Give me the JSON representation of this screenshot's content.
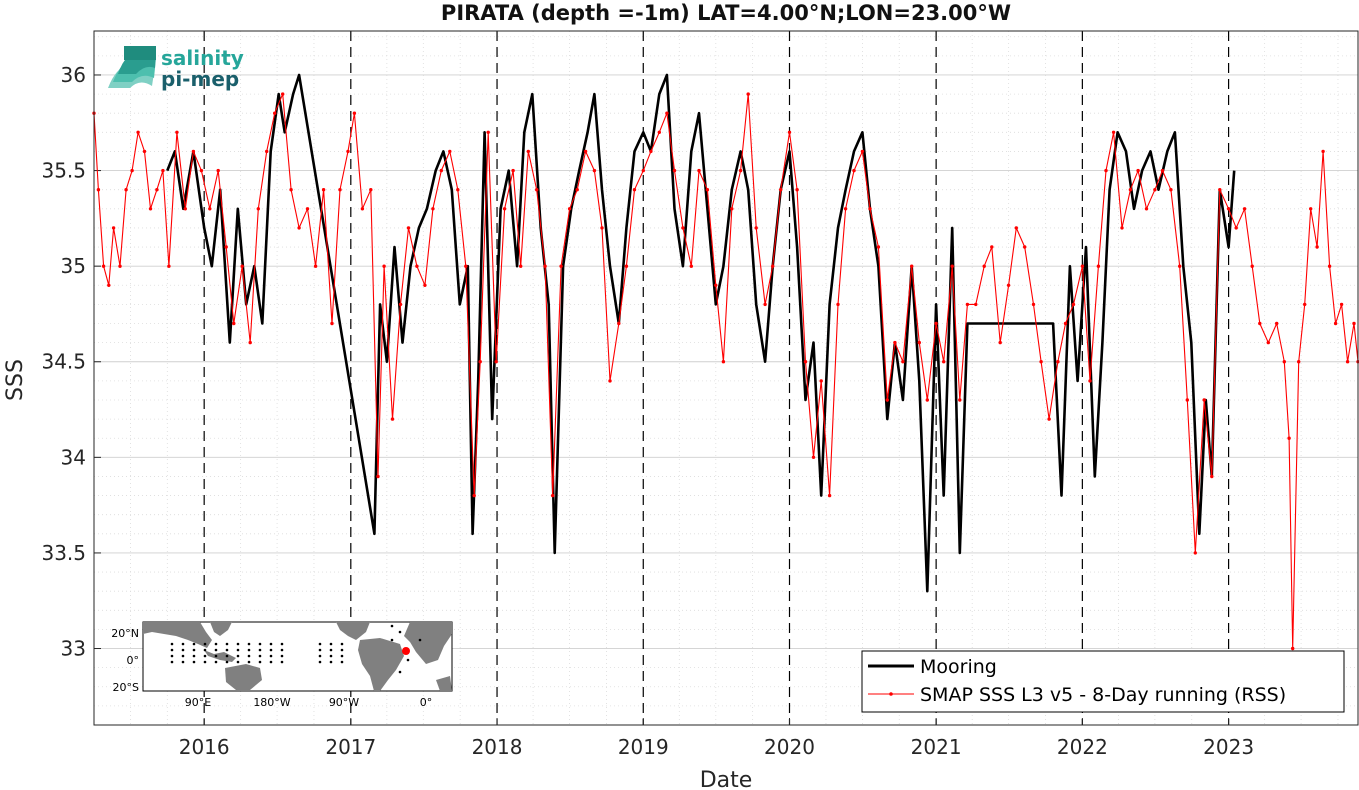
{
  "chart_data": {
    "type": "line",
    "title": "PIRATA (depth =-1m) LAT=4.00°N;LON=23.00°W",
    "xlabel": "Date",
    "ylabel": "SSS",
    "xlim": [
      "2015-04-01",
      "2023-11-20"
    ],
    "ylim": [
      32.6,
      36.23
    ],
    "x_ticks": [
      "2016",
      "2017",
      "2018",
      "2019",
      "2020",
      "2021",
      "2022",
      "2023"
    ],
    "y_ticks": [
      "33",
      "33.5",
      "34",
      "34.5",
      "35",
      "35.5",
      "36"
    ],
    "grid": true,
    "minor_grid": true,
    "year_boundary_lines": "dashed",
    "legend_position": "bottom-right",
    "series": [
      {
        "name": "Mooring",
        "color": "#000000",
        "style": "thick line",
        "x": [
          "2015-10-01",
          "2015-10-20",
          "2015-11-10",
          "2015-12-05",
          "2016-01-01",
          "2016-01-20",
          "2016-02-10",
          "2016-03-05",
          "2016-03-25",
          "2016-04-15",
          "2016-05-05",
          "2016-05-25",
          "2016-06-15",
          "2016-07-05",
          "2016-07-20",
          "2016-08-10",
          "2016-08-25",
          "2017-03-01",
          "2017-03-15",
          "2017-04-01",
          "2017-04-20",
          "2017-05-10",
          "2017-05-30",
          "2017-06-20",
          "2017-07-10",
          "2017-08-01",
          "2017-08-20",
          "2017-09-10",
          "2017-09-30",
          "2017-10-20",
          "2017-11-01",
          "2017-11-15",
          "2017-12-01",
          "2017-12-20",
          "2018-01-10",
          "2018-01-30",
          "2018-02-20",
          "2018-03-10",
          "2018-03-30",
          "2018-04-20",
          "2018-05-10",
          "2018-05-25",
          "2018-06-15",
          "2018-07-05",
          "2018-07-25",
          "2018-08-15",
          "2018-09-01",
          "2018-09-20",
          "2018-10-10",
          "2018-11-01",
          "2018-11-20",
          "2018-12-10",
          "2019-01-01",
          "2019-01-20",
          "2019-02-10",
          "2019-03-01",
          "2019-03-20",
          "2019-04-10",
          "2019-05-01",
          "2019-05-20",
          "2019-06-10",
          "2019-07-01",
          "2019-07-20",
          "2019-08-10",
          "2019-09-01",
          "2019-09-20",
          "2019-10-10",
          "2019-11-01",
          "2019-11-20",
          "2019-12-10",
          "2020-01-01",
          "2020-01-20",
          "2020-02-10",
          "2020-03-01",
          "2020-03-20",
          "2020-04-10",
          "2020-05-01",
          "2020-05-20",
          "2020-06-10",
          "2020-07-01",
          "2020-07-20",
          "2020-08-10",
          "2020-09-01",
          "2020-09-20",
          "2020-10-10",
          "2020-11-01",
          "2020-11-20",
          "2020-12-10",
          "2021-01-01",
          "2021-01-20",
          "2021-02-10",
          "2021-03-01",
          "2021-03-20",
          "2021-10-20",
          "2021-11-10",
          "2021-12-01",
          "2021-12-20",
          "2022-01-10",
          "2022-02-01",
          "2022-02-20",
          "2022-03-10",
          "2022-03-30",
          "2022-04-20",
          "2022-05-10",
          "2022-05-30",
          "2022-06-20",
          "2022-07-10",
          "2022-08-01",
          "2022-08-20",
          "2022-09-10",
          "2022-09-30",
          "2022-10-20",
          "2022-11-05",
          "2022-11-20",
          "2022-12-10",
          "2023-01-01",
          "2023-01-15"
        ],
        "values": [
          35.5,
          35.6,
          35.3,
          35.6,
          35.2,
          35.0,
          35.4,
          34.6,
          35.3,
          34.8,
          35.0,
          34.7,
          35.6,
          35.9,
          35.7,
          35.9,
          36.0,
          33.6,
          34.8,
          34.5,
          35.1,
          34.6,
          35.0,
          35.2,
          35.3,
          35.5,
          35.6,
          35.4,
          34.8,
          35.0,
          33.6,
          34.4,
          35.7,
          34.2,
          35.3,
          35.5,
          35.0,
          35.7,
          35.9,
          35.2,
          34.8,
          33.5,
          35.0,
          35.3,
          35.5,
          35.7,
          35.9,
          35.4,
          35.0,
          34.7,
          35.2,
          35.6,
          35.7,
          35.6,
          35.9,
          36.0,
          35.3,
          35.0,
          35.6,
          35.8,
          35.3,
          34.8,
          35.0,
          35.4,
          35.6,
          35.4,
          34.8,
          34.5,
          35.0,
          35.4,
          35.6,
          35.1,
          34.3,
          34.6,
          33.8,
          34.8,
          35.2,
          35.4,
          35.6,
          35.7,
          35.3,
          35.0,
          34.2,
          34.6,
          34.3,
          35.0,
          34.4,
          33.3,
          34.8,
          33.8,
          35.2,
          33.5,
          34.7,
          34.7,
          33.8,
          35.0,
          34.4,
          35.1,
          33.9,
          34.6,
          35.4,
          35.7,
          35.6,
          35.3,
          35.5,
          35.6,
          35.4,
          35.6,
          35.7,
          35.0,
          34.6,
          33.6,
          34.3,
          33.9,
          35.4,
          35.1,
          35.5
        ]
      },
      {
        "name": "SMAP SSS L3 v5 - 8-Day running (RSS)",
        "color": "#ff0000",
        "style": "thin line with point markers",
        "x": [
          "2015-04-01",
          "2015-04-12",
          "2015-04-25",
          "2015-05-08",
          "2015-05-20",
          "2015-06-05",
          "2015-06-20",
          "2015-07-05",
          "2015-07-20",
          "2015-08-05",
          "2015-08-20",
          "2015-09-05",
          "2015-09-20",
          "2015-10-05",
          "2015-10-25",
          "2015-11-15",
          "2015-12-05",
          "2015-12-25",
          "2016-01-15",
          "2016-02-05",
          "2016-02-25",
          "2016-03-15",
          "2016-04-05",
          "2016-04-25",
          "2016-05-15",
          "2016-06-05",
          "2016-06-25",
          "2016-07-15",
          "2016-08-05",
          "2016-08-25",
          "2016-09-15",
          "2016-10-05",
          "2016-10-25",
          "2016-11-15",
          "2016-12-05",
          "2016-12-25",
          "2017-01-10",
          "2017-01-30",
          "2017-02-20",
          "2017-03-10",
          "2017-03-25",
          "2017-04-15",
          "2017-05-05",
          "2017-05-25",
          "2017-06-15",
          "2017-07-05",
          "2017-07-25",
          "2017-08-15",
          "2017-09-05",
          "2017-09-25",
          "2017-10-15",
          "2017-11-05",
          "2017-11-20",
          "2017-12-10",
          "2017-12-30",
          "2018-01-20",
          "2018-02-10",
          "2018-03-01",
          "2018-03-20",
          "2018-04-10",
          "2018-05-01",
          "2018-05-20",
          "2018-06-10",
          "2018-07-01",
          "2018-07-20",
          "2018-08-10",
          "2018-09-01",
          "2018-09-20",
          "2018-10-10",
          "2018-11-01",
          "2018-11-20",
          "2018-12-10",
          "2019-01-01",
          "2019-01-20",
          "2019-02-10",
          "2019-03-01",
          "2019-03-20",
          "2019-04-10",
          "2019-05-01",
          "2019-05-20",
          "2019-06-10",
          "2019-07-01",
          "2019-07-20",
          "2019-08-10",
          "2019-09-01",
          "2019-09-20",
          "2019-10-10",
          "2019-11-01",
          "2019-11-20",
          "2019-12-10",
          "2020-01-01",
          "2020-01-20",
          "2020-02-10",
          "2020-03-01",
          "2020-03-20",
          "2020-04-10",
          "2020-05-01",
          "2020-05-20",
          "2020-06-10",
          "2020-07-01",
          "2020-07-20",
          "2020-08-10",
          "2020-09-01",
          "2020-09-20",
          "2020-10-10",
          "2020-11-01",
          "2020-11-20",
          "2020-12-10",
          "2021-01-01",
          "2021-01-20",
          "2021-02-10",
          "2021-03-01",
          "2021-03-20",
          "2021-04-10",
          "2021-05-01",
          "2021-05-20",
          "2021-06-10",
          "2021-07-01",
          "2021-07-20",
          "2021-08-10",
          "2021-09-01",
          "2021-09-20",
          "2021-10-10",
          "2021-11-01",
          "2021-11-20",
          "2021-12-10",
          "2022-01-01",
          "2022-01-20",
          "2022-02-10",
          "2022-03-01",
          "2022-03-20",
          "2022-04-10",
          "2022-05-01",
          "2022-05-20",
          "2022-06-10",
          "2022-07-01",
          "2022-07-20",
          "2022-08-10",
          "2022-09-01",
          "2022-09-20",
          "2022-10-10",
          "2022-11-01",
          "2022-11-20",
          "2022-12-10",
          "2023-01-01",
          "2023-01-20",
          "2023-02-10",
          "2023-03-01",
          "2023-03-20",
          "2023-04-10",
          "2023-05-01",
          "2023-05-20",
          "2023-06-01",
          "2023-06-10",
          "2023-06-25",
          "2023-07-10",
          "2023-07-25",
          "2023-08-10",
          "2023-08-25",
          "2023-09-10",
          "2023-09-25",
          "2023-10-10",
          "2023-10-25",
          "2023-11-10",
          "2023-11-20"
        ],
        "values": [
          35.8,
          35.4,
          35.0,
          34.9,
          35.2,
          35.0,
          35.4,
          35.5,
          35.7,
          35.6,
          35.3,
          35.4,
          35.5,
          35.0,
          35.7,
          35.3,
          35.6,
          35.5,
          35.3,
          35.5,
          35.1,
          34.7,
          35.0,
          34.6,
          35.3,
          35.6,
          35.8,
          35.9,
          35.4,
          35.2,
          35.3,
          35.0,
          35.4,
          34.7,
          35.4,
          35.6,
          35.8,
          35.3,
          35.4,
          33.9,
          35.0,
          34.2,
          34.8,
          35.2,
          35.0,
          34.9,
          35.3,
          35.5,
          35.6,
          35.4,
          35.0,
          33.8,
          34.5,
          35.7,
          34.5,
          35.3,
          35.5,
          35.0,
          35.6,
          35.4,
          35.0,
          33.8,
          35.0,
          35.3,
          35.4,
          35.6,
          35.5,
          35.2,
          34.4,
          34.7,
          35.0,
          35.4,
          35.5,
          35.6,
          35.7,
          35.8,
          35.5,
          35.2,
          35.0,
          35.5,
          35.4,
          34.9,
          34.5,
          35.3,
          35.5,
          35.9,
          35.2,
          34.8,
          35.0,
          35.4,
          35.7,
          35.4,
          34.5,
          34.0,
          34.4,
          33.8,
          34.8,
          35.3,
          35.5,
          35.6,
          35.3,
          35.1,
          34.3,
          34.6,
          34.5,
          35.0,
          34.6,
          34.3,
          34.7,
          34.5,
          35.0,
          34.3,
          34.8,
          34.8,
          35.0,
          35.1,
          34.6,
          34.9,
          35.2,
          35.1,
          34.8,
          34.5,
          34.2,
          34.5,
          34.7,
          34.8,
          35.0,
          34.4,
          35.0,
          35.5,
          35.7,
          35.2,
          35.4,
          35.5,
          35.3,
          35.4,
          35.5,
          35.4,
          35.0,
          34.3,
          33.5,
          34.3,
          33.9,
          35.4,
          35.3,
          35.2,
          35.3,
          35.0,
          34.7,
          34.6,
          34.7,
          34.5,
          34.1,
          33.0,
          34.5,
          34.8,
          35.3,
          35.1,
          35.6,
          35.0,
          34.7,
          34.8,
          34.5,
          34.7,
          34.5
        ]
      }
    ]
  },
  "legend": {
    "mooring_label": "Mooring",
    "satellite_label": "SMAP SSS L3 v5 - 8-Day running (RSS)"
  },
  "logo": {
    "line1": "salinity",
    "line2": "pi-mep",
    "color": "#26a69a",
    "dark_color": "#1a5f6b"
  },
  "inset_map": {
    "y_labels": [
      "20°N",
      "0°",
      "20°S"
    ],
    "x_labels": [
      "90°E",
      "180°W",
      "90°W",
      "0°"
    ],
    "land_color": "#808080",
    "marker_color": "#ff0000"
  }
}
